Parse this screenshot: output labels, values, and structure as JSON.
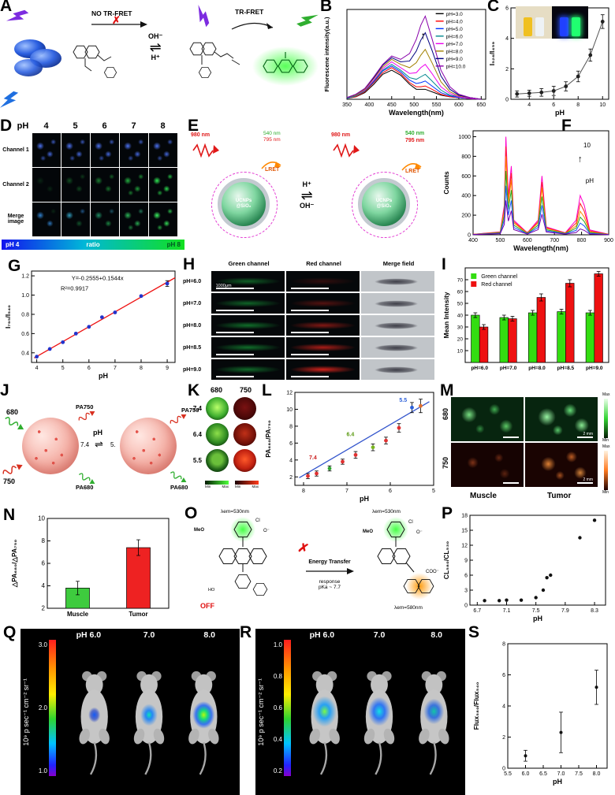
{
  "panels": {
    "A": {
      "letter": "A",
      "no_fret": "NO TR-FRET",
      "fret": "TR-FRET",
      "oh": "OH⁻",
      "h": "H⁺",
      "eq": "⇌",
      "cross": "✗"
    },
    "B": {
      "letter": "B"
    },
    "C": {
      "letter": "C"
    },
    "D": {
      "letter": "D",
      "ph": "pH",
      "cols": [
        "4",
        "5",
        "6",
        "7",
        "8"
      ],
      "rows": [
        "Channel 1",
        "Channel 2",
        "Merge image"
      ],
      "bar_left": "pH 4",
      "bar_mid": "ratio",
      "bar_right": "pH 8"
    },
    "E": {
      "letter": "E",
      "nm980": "980 nm",
      "nm540": "540 nm",
      "nm795": "795 nm",
      "lret": "LRET",
      "core": "UCNPs @SiO₂",
      "h": "H⁺",
      "oh": "OH⁻",
      "eq": "⇌"
    },
    "F": {
      "letter": "F"
    },
    "G": {
      "letter": "G"
    },
    "H": {
      "letter": "H",
      "cols": [
        "Green channel",
        "Red channel",
        "Merge field"
      ],
      "rows": [
        "pH=6.0",
        "pH=7.0",
        "pH=8.0",
        "pH=8.5",
        "pH=9.0"
      ],
      "scale": "1000μm"
    },
    "I": {
      "letter": "I"
    },
    "J": {
      "letter": "J",
      "in680": "680",
      "in750": "750",
      "pa750": "PA750",
      "pa680": "PA680",
      "ph": "pH",
      "ph_hi": "7.4",
      "ph_lo": "5.",
      "eq": "⇌"
    },
    "K": {
      "letter": "K",
      "c680": "680",
      "c750": "750",
      "rows": [
        "7.4",
        "6.4",
        "5.5"
      ],
      "min": "Min",
      "max": "Max"
    },
    "L": {
      "letter": "L"
    },
    "M": {
      "letter": "M",
      "r680": "680",
      "r750": "750",
      "muscle": "Muscle",
      "tumor": "Tumor",
      "scale": "2 mm",
      "max": "Max",
      "min": "Min"
    },
    "N": {
      "letter": "N"
    },
    "O": {
      "letter": "O",
      "em530a": "λem=530nm",
      "em530b": "λem=530nm",
      "off": "OFF",
      "cross": "✗",
      "et": "Energy Transfer",
      "resp": "response",
      "pka": "pKa ~ 7.7",
      "em580": "λem=580nm",
      "meo": "MeO",
      "cl": "Cl",
      "o1": "O⁻",
      "coo": "COO⁻",
      "ho": "HO"
    },
    "P": {
      "letter": "P"
    },
    "Q": {
      "letter": "Q",
      "ph_labels": [
        "pH 6.0",
        "7.0",
        "8.0"
      ],
      "unit": "10⁹ p sec⁻¹ cm⁻² sr⁻¹",
      "ticks": [
        "3.0",
        "2.0",
        "1.0"
      ]
    },
    "R": {
      "letter": "R",
      "ph_labels": [
        "pH 6.0",
        "7.0",
        "8.0"
      ],
      "unit": "10⁹ p sec⁻¹ cm⁻² sr⁻¹",
      "ticks": [
        "1.0",
        "0.8",
        "0.6",
        "0.4",
        "0.2"
      ]
    },
    "S": {
      "letter": "S"
    }
  },
  "chart_data": [
    {
      "panel": "B",
      "type": "line",
      "xlabel": "Wavelength(nm)",
      "ylabel": "Fluorescene intensity(a.u.)",
      "xlim": [
        350,
        660
      ],
      "ylim": [
        0,
        108
      ],
      "xticks": [
        350,
        400,
        450,
        500,
        550,
        600,
        650
      ],
      "yticks": [],
      "x": [
        350,
        370,
        390,
        410,
        430,
        450,
        470,
        490,
        505,
        515,
        525,
        540,
        560,
        580,
        600,
        625,
        650
      ],
      "series": [
        {
          "name": "pH=3.0",
          "color": "#000000",
          "y": [
            1,
            3,
            8,
            18,
            30,
            35,
            29,
            18,
            12,
            12,
            12,
            9,
            5,
            3,
            2,
            1,
            0
          ]
        },
        {
          "name": "pH=4.0",
          "color": "#ff0000",
          "y": [
            1,
            3,
            9,
            20,
            32,
            38,
            31,
            20,
            15,
            15,
            16,
            12,
            6,
            3,
            2,
            1,
            0
          ]
        },
        {
          "name": "pH=5.0",
          "color": "#0033ff",
          "y": [
            1,
            4,
            10,
            21,
            34,
            40,
            33,
            23,
            19,
            20,
            22,
            16,
            8,
            4,
            2,
            1,
            0
          ]
        },
        {
          "name": "pH=6.0",
          "color": "#00888f",
          "y": [
            1,
            4,
            10,
            22,
            35,
            42,
            35,
            26,
            24,
            27,
            30,
            22,
            11,
            5,
            3,
            1,
            0
          ]
        },
        {
          "name": "pH=7.0",
          "color": "#ee00ee",
          "y": [
            2,
            5,
            11,
            23,
            37,
            45,
            38,
            31,
            32,
            38,
            42,
            31,
            15,
            7,
            3,
            1,
            0
          ]
        },
        {
          "name": "pH=8.0",
          "color": "#a08000",
          "y": [
            2,
            5,
            12,
            25,
            39,
            48,
            42,
            38,
            44,
            53,
            60,
            44,
            21,
            9,
            4,
            2,
            0
          ]
        },
        {
          "name": "pH=9.0",
          "color": "#000080",
          "y": [
            2,
            6,
            13,
            26,
            41,
            50,
            45,
            46,
            58,
            71,
            80,
            59,
            28,
            12,
            5,
            2,
            0
          ]
        },
        {
          "name": "pH=10.0",
          "color": "#8800aa",
          "y": [
            2,
            6,
            13,
            27,
            42,
            52,
            48,
            55,
            72,
            89,
            100,
            73,
            35,
            15,
            6,
            2,
            0
          ]
        }
      ],
      "legend": {
        "fx": 0.64,
        "fy": 0.06,
        "dy": 9.5,
        "fs": 6.5
      },
      "annotations": [
        {
          "fx": 0.55,
          "fy": 0.33,
          "text": "↑",
          "fs": 13
        }
      ]
    },
    {
      "panel": "C",
      "type": "scatter",
      "xlabel": "pH",
      "ylabel": "I₅₂₆/I₄₅₉",
      "xlim": [
        2.5,
        10.5
      ],
      "ylim": [
        0,
        6
      ],
      "xticks": [
        4,
        6,
        8,
        10
      ],
      "yticks": [
        0,
        2,
        4,
        6
      ],
      "line": true,
      "lineColor": "#555",
      "pointColor": "#222",
      "points": [
        [
          3,
          0.35,
          0.2
        ],
        [
          4,
          0.4,
          0.2
        ],
        [
          5,
          0.45,
          0.25
        ],
        [
          6,
          0.55,
          0.3
        ],
        [
          7,
          0.85,
          0.3
        ],
        [
          8,
          1.5,
          0.35
        ],
        [
          9,
          2.9,
          0.4
        ],
        [
          10,
          5.1,
          0.45
        ]
      ]
    },
    {
      "panel": "F",
      "type": "line",
      "xlabel": "Wavelength(nm)",
      "ylabel": "Counts",
      "xlim": [
        400,
        900
      ],
      "ylim": [
        0,
        1060
      ],
      "xticks": [
        400,
        500,
        600,
        700,
        800,
        900
      ],
      "yticks": [
        0,
        200,
        400,
        600,
        800,
        1000
      ],
      "x": [
        400,
        500,
        515,
        521,
        530,
        541,
        550,
        600,
        640,
        654,
        670,
        740,
        780,
        795,
        810,
        830,
        900
      ],
      "series": [
        {
          "name": "",
          "color": "#ff00cc",
          "y": [
            5,
            30,
            300,
            1000,
            400,
            700,
            150,
            20,
            150,
            600,
            80,
            20,
            150,
            400,
            300,
            50,
            5
          ]
        },
        {
          "name": "",
          "color": "#ff2222",
          "y": [
            5,
            27,
            270,
            900,
            360,
            630,
            135,
            18,
            135,
            540,
            72,
            18,
            120,
            320,
            240,
            40,
            5
          ]
        },
        {
          "name": "",
          "color": "#ff8800",
          "y": [
            4,
            24,
            240,
            800,
            320,
            560,
            120,
            16,
            120,
            480,
            64,
            16,
            90,
            240,
            180,
            30,
            4
          ]
        },
        {
          "name": "",
          "color": "#22aa22",
          "y": [
            3,
            20,
            195,
            650,
            260,
            455,
            98,
            13,
            98,
            390,
            52,
            13,
            68,
            180,
            135,
            23,
            3
          ]
        },
        {
          "name": "",
          "color": "#2255ff",
          "y": [
            3,
            15,
            150,
            500,
            200,
            350,
            75,
            10,
            75,
            300,
            40,
            10,
            45,
            120,
            90,
            15,
            2
          ]
        },
        {
          "name": "",
          "color": "#7700aa",
          "y": [
            2,
            11,
            105,
            350,
            140,
            245,
            53,
            7,
            53,
            210,
            28,
            7,
            23,
            60,
            45,
            8,
            1
          ]
        }
      ],
      "annotations": [
        {
          "fx": 0.84,
          "fy": 0.16,
          "text": "10",
          "fs": 8
        },
        {
          "fx": 0.79,
          "fy": 0.3,
          "text": "↑",
          "fs": 12
        },
        {
          "fx": 0.86,
          "fy": 0.5,
          "text": "pH",
          "fs": 8
        }
      ]
    },
    {
      "panel": "G",
      "type": "scatter",
      "xlabel": "pH",
      "ylabel": "I₇₉₅/I₅₄₀",
      "xlim": [
        3.8,
        9.3
      ],
      "ylim": [
        0.3,
        1.25
      ],
      "xticks": [
        4,
        5,
        6,
        7,
        8,
        9
      ],
      "yticks": [
        "0.4",
        "0.6",
        "0.8",
        "1.0",
        "1.2"
      ],
      "pointColor": "#2233cc",
      "fit": {
        "x1": 3.9,
        "y1": 0.3467,
        "x2": 9.3,
        "y2": 1.1804,
        "color": "#ee1111"
      },
      "points": [
        [
          4,
          0.36
        ],
        [
          4.5,
          0.44
        ],
        [
          5,
          0.51
        ],
        [
          5.5,
          0.6
        ],
        [
          6,
          0.67
        ],
        [
          6.5,
          0.77
        ],
        [
          7,
          0.82
        ],
        [
          8,
          0.99
        ],
        [
          9,
          1.12,
          0.03
        ]
      ],
      "annotations": [
        {
          "fx": 0.46,
          "fy": 0.1,
          "text": "Y=-0.2555+0.1544x",
          "fs": 7.5
        },
        {
          "fx": 0.3,
          "fy": 0.21,
          "text": "R²=0.9917",
          "fs": 7.5
        }
      ]
    },
    {
      "panel": "I",
      "type": "bar",
      "ylabel": "Mean Intensity",
      "ylim": [
        0,
        80
      ],
      "yticks": [
        10,
        20,
        30,
        40,
        50,
        60,
        70
      ],
      "categories": [
        "pH=6.0",
        "pH=7.0",
        "pH=8.0",
        "pH=8.5",
        "pH=9.0"
      ],
      "catBold": true,
      "tickFs": 6.5,
      "series": [
        {
          "name": "Green channel",
          "color": "#33dd11",
          "values": [
            40,
            38,
            42,
            43,
            42
          ],
          "errors": [
            2,
            2,
            2,
            2,
            2
          ]
        },
        {
          "name": "Red channel",
          "color": "#ee1111",
          "values": [
            30,
            37,
            55,
            67,
            75
          ],
          "errors": [
            2,
            2,
            3,
            3,
            2
          ]
        }
      ],
      "legend": {
        "fx": 0.04,
        "fy": 0.1,
        "dy": 10,
        "fs": 7
      }
    },
    {
      "panel": "L",
      "type": "scatter",
      "xlabel": "pH",
      "ylabel": "PA₆₈₀/PA₇₅₀",
      "xreverse": true,
      "xlim": [
        5.0,
        8.2
      ],
      "ylim": [
        1,
        12
      ],
      "xticks": [
        8,
        7,
        6,
        5
      ],
      "yticks": [
        2,
        4,
        6,
        8,
        10,
        12
      ],
      "fit": {
        "x1": 8.1,
        "y1": 1.9,
        "x2": 5.1,
        "y2": 10.9,
        "color": "#3355cc"
      },
      "points": [
        [
          7.9,
          2.1,
          0.3
        ],
        [
          7.7,
          2.4,
          0.3
        ],
        [
          7.4,
          3.0,
          0.3
        ],
        [
          7.1,
          3.8,
          0.3
        ],
        [
          6.8,
          4.6,
          0.4
        ],
        [
          6.4,
          5.5,
          0.4
        ],
        [
          6.1,
          6.3,
          0.4
        ],
        [
          5.8,
          7.8,
          0.5
        ],
        [
          5.5,
          10.2,
          0.6
        ],
        [
          5.3,
          10.4,
          0.8
        ]
      ],
      "colors": [
        "#e03030",
        "#e03030",
        "#2fa32f",
        "#e03030",
        "#e03030",
        "#7ab520",
        "#e03030",
        "#e03030",
        "#2b5fd9",
        "#e07030"
      ],
      "annotations": [
        {
          "fx": 0.78,
          "fy": 0.1,
          "text": "5.5",
          "fs": 7,
          "color": "#2b5fd9",
          "bold": true
        },
        {
          "fx": 0.4,
          "fy": 0.47,
          "text": "6.4",
          "fs": 7,
          "color": "#5a9a10",
          "bold": true
        },
        {
          "fx": 0.13,
          "fy": 0.72,
          "text": "7.4",
          "fs": 7,
          "color": "#cc2020",
          "bold": true
        }
      ]
    },
    {
      "panel": "N",
      "type": "bar",
      "ylabel": "△PA₆₈₀/△PA₇₅₀",
      "ylim": [
        2,
        10
      ],
      "yticks": [
        2,
        4,
        6,
        8,
        10
      ],
      "catBold": true,
      "tickFs": 8,
      "bars": [
        {
          "label": "Muscle",
          "value": 3.8,
          "error": 0.6,
          "color": "#3ecb3e"
        },
        {
          "label": "Tumor",
          "value": 7.4,
          "error": 0.7,
          "color": "#ee2222"
        }
      ]
    },
    {
      "panel": "P",
      "type": "scatter",
      "xlabel": "pH",
      "ylabel": "CL₅₈₀/CL₅₃₀",
      "xlim": [
        6.6,
        8.45
      ],
      "ylim": [
        0,
        18
      ],
      "xticks": [
        6.7,
        7.1,
        7.5,
        7.9,
        8.3
      ],
      "yticks": [
        0,
        3,
        6,
        9,
        12,
        15,
        18
      ],
      "pointColor": "#111",
      "r": 2.2,
      "points": [
        [
          6.8,
          0.9
        ],
        [
          7.0,
          0.9
        ],
        [
          7.1,
          1.0
        ],
        [
          7.3,
          1.0
        ],
        [
          7.5,
          1.5
        ],
        [
          7.6,
          3.0
        ],
        [
          7.65,
          5.5
        ],
        [
          7.7,
          6.0
        ],
        [
          8.1,
          13.5
        ],
        [
          8.3,
          17.0
        ]
      ]
    },
    {
      "panel": "S",
      "type": "scatter",
      "xlabel": "pH",
      "ylabel": "Flux₅₈₀/Flux₅₄₀",
      "xlim": [
        5.5,
        8.3
      ],
      "ylim": [
        0,
        8
      ],
      "xticks": [
        "5.5",
        "6.0",
        "6.5",
        "7.0",
        "7.5",
        "8.0"
      ],
      "yticks": [
        0,
        2,
        4,
        6,
        8
      ],
      "pointColor": "#111",
      "r": 2,
      "points": [
        [
          6.0,
          0.8,
          0.35
        ],
        [
          7.0,
          2.3,
          1.3
        ],
        [
          8.0,
          5.2,
          1.1
        ]
      ]
    }
  ]
}
